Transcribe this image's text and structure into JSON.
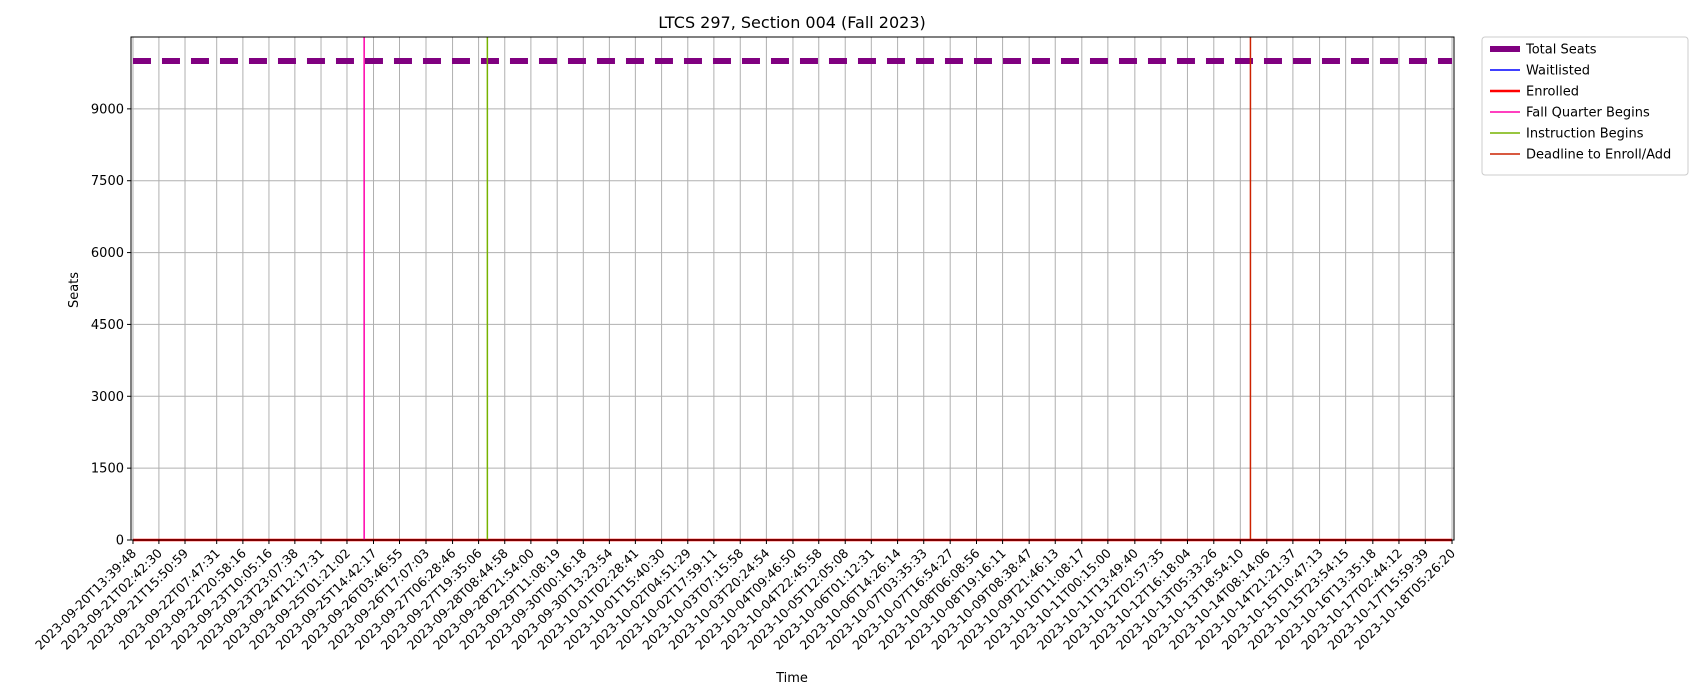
{
  "chart_data": {
    "type": "line",
    "title": "LTCS 297, Section 004 (Fall 2023)",
    "xlabel": "Time",
    "ylabel": "Seats",
    "ylim": [
      0,
      10500
    ],
    "yticks": [
      0,
      1500,
      3000,
      4500,
      6000,
      7500,
      9000
    ],
    "grid": true,
    "legend_placement": "outside-top-right",
    "x": [
      "2023-09-20T13:39:48",
      "2023-09-21T02:42:30",
      "2023-09-21T15:50:59",
      "2023-09-22T07:47:31",
      "2023-09-22T20:58:16",
      "2023-09-23T10:05:16",
      "2023-09-23T23:07:38",
      "2023-09-24T12:17:31",
      "2023-09-25T01:21:02",
      "2023-09-25T14:42:17",
      "2023-09-26T03:46:55",
      "2023-09-26T17:07:03",
      "2023-09-27T06:28:46",
      "2023-09-27T19:35:06",
      "2023-09-28T08:44:58",
      "2023-09-28T21:54:00",
      "2023-09-29T11:08:19",
      "2023-09-30T00:16:18",
      "2023-09-30T13:23:54",
      "2023-10-01T02:28:41",
      "2023-10-01T15:40:30",
      "2023-10-02T04:51:29",
      "2023-10-02T17:59:11",
      "2023-10-03T07:15:58",
      "2023-10-03T20:24:54",
      "2023-10-04T09:46:50",
      "2023-10-04T22:45:58",
      "2023-10-05T12:05:08",
      "2023-10-06T01:12:31",
      "2023-10-06T14:26:14",
      "2023-10-07T03:35:33",
      "2023-10-07T16:54:27",
      "2023-10-08T06:08:56",
      "2023-10-08T19:16:11",
      "2023-10-09T08:38:47",
      "2023-10-09T21:46:13",
      "2023-10-10T11:08:17",
      "2023-10-11T00:15:00",
      "2023-10-11T13:49:40",
      "2023-10-12T02:57:35",
      "2023-10-12T16:18:04",
      "2023-10-13T05:33:26",
      "2023-10-13T18:54:10",
      "2023-10-14T08:14:06",
      "2023-10-14T21:21:37",
      "2023-10-15T10:47:13",
      "2023-10-15T23:54:15",
      "2023-10-16T13:35:18",
      "2023-10-17T02:44:12",
      "2023-10-17T15:59:39",
      "2023-10-18T05:26:20"
    ],
    "series": [
      {
        "name": "Total Seats",
        "constant": 10000,
        "color": "#800080",
        "style": "dashed-thick"
      },
      {
        "name": "Waitlisted",
        "constant": 0,
        "color": "#0000ff",
        "style": "solid"
      },
      {
        "name": "Enrolled",
        "constant": 0,
        "color": "#ff0000",
        "style": "solid-thick"
      }
    ],
    "events": [
      {
        "name": "Fall Quarter Begins",
        "date": "2023-09-25T10:00:00",
        "color": "#ff00aa"
      },
      {
        "name": "Instruction Begins",
        "date": "2023-09-28T00:00:00",
        "color": "#77b300"
      },
      {
        "name": "Deadline to Enroll/Add",
        "date": "2023-10-14T00:00:00",
        "color": "#cc2200"
      }
    ]
  }
}
